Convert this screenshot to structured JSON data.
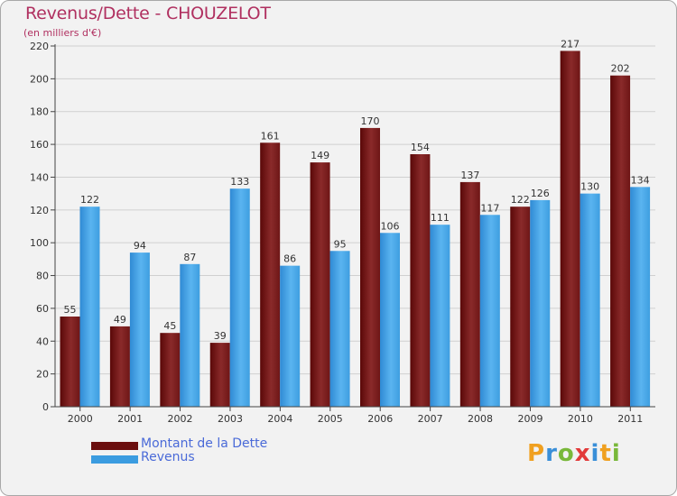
{
  "header": {
    "title": "Revenus/Dette - CHOUZELOT",
    "subtitle": "(en milliers d'€)"
  },
  "legend": {
    "items": [
      {
        "label": "Montant de la Dette",
        "color": "#6b0f0f"
      },
      {
        "label": "Revenus",
        "color": "#3b9ce0"
      }
    ]
  },
  "logo": {
    "text": "Proxiti",
    "letters": [
      {
        "ch": "P",
        "color": "#f0a020"
      },
      {
        "ch": "r",
        "color": "#3a8fd8"
      },
      {
        "ch": "o",
        "color": "#79b83a"
      },
      {
        "ch": "x",
        "color": "#e23a3a"
      },
      {
        "ch": "i",
        "color": "#3a8fd8"
      },
      {
        "ch": "t",
        "color": "#f0a020"
      },
      {
        "ch": "i",
        "color": "#79b83a"
      }
    ]
  },
  "chart_data": {
    "type": "bar",
    "title": "Revenus/Dette - CHOUZELOT",
    "ylabel": "(en milliers d'€)",
    "categories": [
      "2000",
      "2001",
      "2002",
      "2003",
      "2004",
      "2005",
      "2006",
      "2007",
      "2008",
      "2009",
      "2010",
      "2011"
    ],
    "series": [
      {
        "name": "Montant de la Dette",
        "color": "#7a1a1a",
        "values": [
          55,
          49,
          45,
          39,
          161,
          149,
          170,
          154,
          137,
          122,
          217,
          202
        ]
      },
      {
        "name": "Revenus",
        "color": "#4aa8e8",
        "values": [
          122,
          94,
          87,
          133,
          86,
          95,
          106,
          111,
          117,
          126,
          130,
          134
        ]
      }
    ],
    "ylim": [
      0,
      220
    ],
    "yticks": [
      0,
      20,
      40,
      60,
      80,
      100,
      120,
      140,
      160,
      180,
      200,
      220
    ],
    "grid": true,
    "legend_position": "bottom-left"
  }
}
